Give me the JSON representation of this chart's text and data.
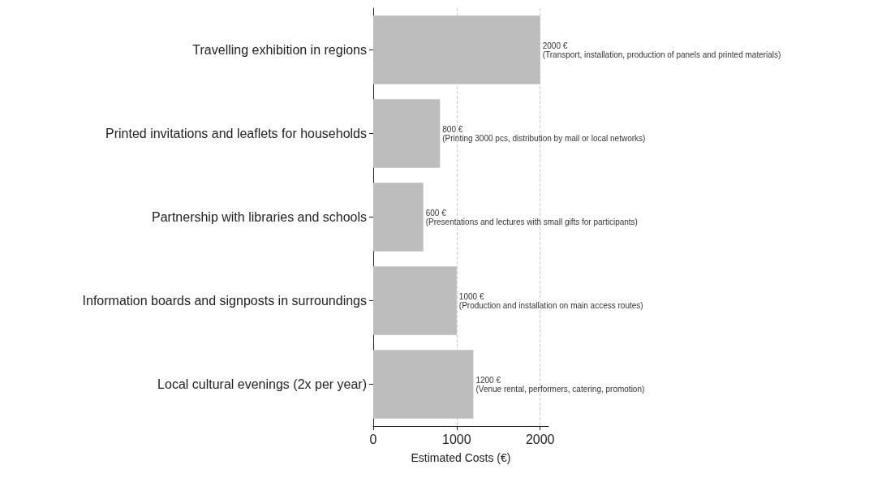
{
  "chart_data": {
    "type": "bar",
    "orientation": "horizontal",
    "xlabel": "Estimated Costs (€)",
    "categories": [
      "Travelling exhibition in regions",
      "Printed invitations and leaflets for households",
      "Partnership with libraries and schools",
      "Information boards and signposts in surroundings",
      "Local cultural evenings (2x per year)"
    ],
    "values": [
      2000,
      800,
      600,
      1000,
      1200
    ],
    "color": "#bdbdbd",
    "value_labels": [
      "2000 €\n(Transport, installation, production of panels and printed materials)",
      "800 €\n(Printing 3000 pcs, distribution by mail or local networks)",
      "600 €\n(Presentations and lectures with small gifts for participants)",
      "1000 €\n(Production and installation on main access routes)",
      "1200 €\n(Venue rental, performers, catering, promotion)"
    ],
    "xlim": [
      0,
      2100
    ],
    "xticks": [
      0,
      1000,
      2000
    ],
    "grid": "x"
  }
}
